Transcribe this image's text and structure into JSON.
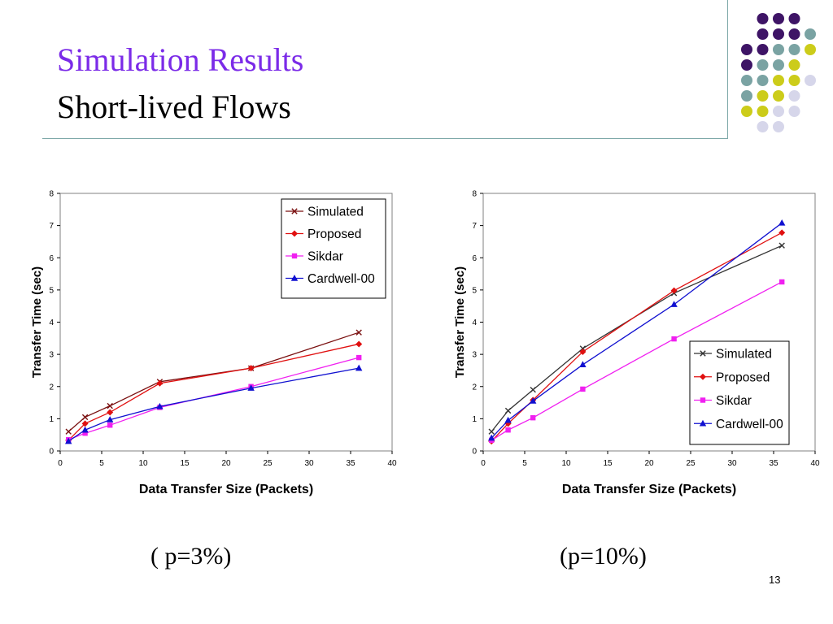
{
  "slide": {
    "title": "Simulation Results",
    "subtitle": "Short-lived Flows",
    "caption_left": "( p=3%)",
    "caption_right": "(p=10%)",
    "page_number": "13"
  },
  "colors": {
    "title": "#7B2BE8",
    "rule": "#7FA9A9",
    "dot_purple": "#3E1466",
    "dot_teal": "#7AA3A3",
    "dot_yellow": "#CCCC1A",
    "dot_lavender": "#D6D6EA"
  },
  "chart_data": [
    {
      "type": "line",
      "xlabel": "Data Transfer Size (Packets)",
      "ylabel": "Transfer Time (sec)",
      "xlim": [
        0,
        40
      ],
      "ylim": [
        0,
        8
      ],
      "xticks": [
        0,
        5,
        10,
        15,
        20,
        25,
        30,
        35,
        40
      ],
      "yticks": [
        0,
        1,
        2,
        3,
        4,
        5,
        6,
        7,
        8
      ],
      "legend_position": "top-right",
      "grid": false,
      "x": [
        1,
        3,
        6,
        12,
        23,
        36
      ],
      "series": [
        {
          "name": "Simulated",
          "color": "#7A1010",
          "marker": "x",
          "values": [
            0.6,
            1.05,
            1.4,
            2.15,
            2.57,
            3.68
          ]
        },
        {
          "name": "Proposed",
          "color": "#E01010",
          "marker": "diamond",
          "values": [
            0.33,
            0.85,
            1.2,
            2.1,
            2.57,
            3.32
          ]
        },
        {
          "name": "Sikdar",
          "color": "#F020F0",
          "marker": "square",
          "values": [
            0.35,
            0.55,
            0.8,
            1.35,
            2.0,
            2.9
          ]
        },
        {
          "name": "Cardwell-00",
          "color": "#1010D0",
          "marker": "triangle",
          "values": [
            0.3,
            0.65,
            0.97,
            1.38,
            1.95,
            2.57
          ]
        }
      ]
    },
    {
      "type": "line",
      "xlabel": "Data Transfer Size (Packets)",
      "ylabel": "Transfer Time (sec)",
      "xlim": [
        0,
        40
      ],
      "ylim": [
        0,
        8
      ],
      "xticks": [
        0,
        5,
        10,
        15,
        20,
        25,
        30,
        35,
        40
      ],
      "yticks": [
        0,
        1,
        2,
        3,
        4,
        5,
        6,
        7,
        8
      ],
      "legend_position": "bottom-right",
      "grid": false,
      "x": [
        1,
        3,
        6,
        12,
        23,
        36
      ],
      "series": [
        {
          "name": "Simulated",
          "color": "#333333",
          "marker": "x",
          "values": [
            0.6,
            1.25,
            1.9,
            3.18,
            4.9,
            6.38
          ]
        },
        {
          "name": "Proposed",
          "color": "#E01010",
          "marker": "diamond",
          "values": [
            0.3,
            0.85,
            1.58,
            3.08,
            4.98,
            6.78
          ]
        },
        {
          "name": "Sikdar",
          "color": "#F020F0",
          "marker": "square",
          "values": [
            0.33,
            0.65,
            1.03,
            1.92,
            3.48,
            5.25
          ]
        },
        {
          "name": "Cardwell-00",
          "color": "#1010D0",
          "marker": "triangle",
          "values": [
            0.4,
            0.95,
            1.55,
            2.68,
            4.55,
            7.08
          ]
        }
      ]
    }
  ]
}
